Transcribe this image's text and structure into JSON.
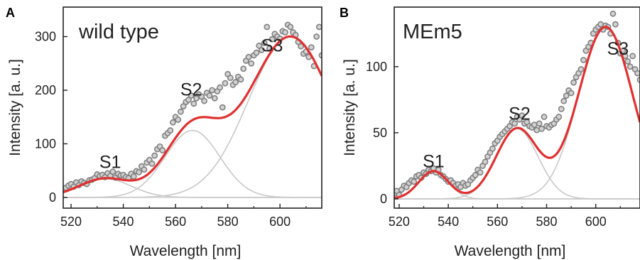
{
  "chart_data": [
    {
      "type": "scatter",
      "panel_label": "A",
      "title": "wild type",
      "xlabel": "Wavelength [nm]",
      "ylabel": "Intensity [a. u.]",
      "xlim": [
        517,
        616
      ],
      "ylim": [
        -20,
        355
      ],
      "xticks": [
        520,
        540,
        560,
        580,
        600
      ],
      "yticks": [
        0,
        100,
        200,
        300
      ],
      "grid": false,
      "colors": {
        "fit": "#e03030",
        "component": "#c8c8c8",
        "point_stroke": "#808080",
        "point_fill": "#d2d2d2"
      },
      "peaks": [
        {
          "label": "S1",
          "x": 535,
          "y": 55
        },
        {
          "label": "S2",
          "x": 566,
          "y": 190
        },
        {
          "label": "S3",
          "x": 597,
          "y": 272
        }
      ],
      "components": [
        {
          "center": 533,
          "amplitude": 35,
          "width": 10
        },
        {
          "center": 566.5,
          "amplitude": 125,
          "width": 10.5
        },
        {
          "center": 604,
          "amplitude": 300,
          "width": 16
        }
      ],
      "points": [
        [
          517,
          15
        ],
        [
          518,
          18
        ],
        [
          519,
          22
        ],
        [
          520,
          25
        ],
        [
          521,
          20
        ],
        [
          522,
          28
        ],
        [
          523,
          23
        ],
        [
          524,
          30
        ],
        [
          525,
          27
        ],
        [
          526,
          25
        ],
        [
          527,
          32
        ],
        [
          528,
          33
        ],
        [
          529,
          36
        ],
        [
          530,
          43
        ],
        [
          531,
          40
        ],
        [
          532,
          42
        ],
        [
          533,
          38
        ],
        [
          534,
          45
        ],
        [
          535,
          40
        ],
        [
          536,
          48
        ],
        [
          537,
          37
        ],
        [
          538,
          44
        ],
        [
          539,
          41
        ],
        [
          540,
          42
        ],
        [
          541,
          38
        ],
        [
          542,
          36
        ],
        [
          543,
          44
        ],
        [
          544,
          39
        ],
        [
          545,
          49
        ],
        [
          546,
          47
        ],
        [
          547,
          58
        ],
        [
          548,
          52
        ],
        [
          549,
          65
        ],
        [
          550,
          70
        ],
        [
          551,
          63
        ],
        [
          552,
          78
        ],
        [
          553,
          90
        ],
        [
          554,
          95
        ],
        [
          555,
          88
        ],
        [
          556,
          115
        ],
        [
          557,
          120
        ],
        [
          558,
          125
        ],
        [
          559,
          140
        ],
        [
          560,
          150
        ],
        [
          561,
          145
        ],
        [
          562,
          160
        ],
        [
          563,
          170
        ],
        [
          564,
          178
        ],
        [
          565,
          182
        ],
        [
          566,
          190
        ],
        [
          567,
          175
        ],
        [
          568,
          185
        ],
        [
          569,
          192
        ],
        [
          570,
          188
        ],
        [
          571,
          180
        ],
        [
          572,
          195
        ],
        [
          573,
          190
        ],
        [
          574,
          200
        ],
        [
          575,
          185
        ],
        [
          576,
          198
        ],
        [
          577,
          205
        ],
        [
          578,
          168
        ],
        [
          579,
          213
        ],
        [
          580,
          230
        ],
        [
          581,
          223
        ],
        [
          582,
          210
        ],
        [
          583,
          215
        ],
        [
          584,
          225
        ],
        [
          585,
          220
        ],
        [
          586,
          240
        ],
        [
          587,
          255
        ],
        [
          588,
          262
        ],
        [
          589,
          250
        ],
        [
          590,
          265
        ],
        [
          591,
          270
        ],
        [
          592,
          283
        ],
        [
          593,
          275
        ],
        [
          594,
          288
        ],
        [
          595,
          318
        ],
        [
          596,
          278
        ],
        [
          597,
          295
        ],
        [
          598,
          305
        ],
        [
          599,
          300
        ],
        [
          600,
          296
        ],
        [
          601,
          310
        ],
        [
          602,
          308
        ],
        [
          603,
          322
        ],
        [
          604,
          318
        ],
        [
          605,
          308
        ],
        [
          606,
          303
        ],
        [
          607,
          290
        ],
        [
          608,
          282
        ],
        [
          609,
          268
        ],
        [
          610,
          272
        ],
        [
          611,
          262
        ],
        [
          612,
          280
        ],
        [
          613,
          245
        ],
        [
          614,
          300
        ],
        [
          615,
          318
        ],
        [
          616,
          265
        ]
      ]
    },
    {
      "type": "scatter",
      "panel_label": "B",
      "title": "MEm5",
      "xlabel": "Wavelength [nm]",
      "ylabel": "Intensity [a. u.]",
      "xlim": [
        518,
        618
      ],
      "ylim": [
        -7,
        145
      ],
      "xticks": [
        520,
        540,
        560,
        580,
        600
      ],
      "yticks": [
        0,
        50,
        100
      ],
      "grid": false,
      "colors": {
        "fit": "#e03030",
        "component": "#c8c8c8",
        "point_stroke": "#808080",
        "point_fill": "#d2d2d2"
      },
      "peaks": [
        {
          "label": "S1",
          "x": 534,
          "y": 24
        },
        {
          "label": "S2",
          "x": 569,
          "y": 60
        },
        {
          "label": "S3",
          "x": 609,
          "y": 109
        }
      ],
      "components": [
        {
          "center": 534,
          "amplitude": 21,
          "width": 6
        },
        {
          "center": 568,
          "amplitude": 53,
          "width": 8.5
        },
        {
          "center": 604,
          "amplitude": 130,
          "width": 11
        }
      ],
      "points": [
        [
          518,
          4
        ],
        [
          519,
          6
        ],
        [
          520,
          3
        ],
        [
          521,
          7
        ],
        [
          522,
          10
        ],
        [
          523,
          9
        ],
        [
          524,
          12
        ],
        [
          525,
          14
        ],
        [
          526,
          13
        ],
        [
          527,
          17
        ],
        [
          528,
          18
        ],
        [
          529,
          16
        ],
        [
          530,
          20
        ],
        [
          531,
          19
        ],
        [
          532,
          22
        ],
        [
          533,
          21
        ],
        [
          534,
          23
        ],
        [
          535,
          20
        ],
        [
          536,
          22
        ],
        [
          537,
          18
        ],
        [
          538,
          17
        ],
        [
          539,
          15
        ],
        [
          540,
          13
        ],
        [
          541,
          14
        ],
        [
          542,
          12
        ],
        [
          543,
          10
        ],
        [
          544,
          11
        ],
        [
          545,
          9
        ],
        [
          546,
          12
        ],
        [
          547,
          10
        ],
        [
          548,
          11
        ],
        [
          549,
          14
        ],
        [
          550,
          16
        ],
        [
          551,
          18
        ],
        [
          552,
          22
        ],
        [
          553,
          20
        ],
        [
          554,
          25
        ],
        [
          555,
          28
        ],
        [
          556,
          32
        ],
        [
          557,
          35
        ],
        [
          558,
          38
        ],
        [
          559,
          42
        ],
        [
          560,
          44
        ],
        [
          561,
          47
        ],
        [
          562,
          49
        ],
        [
          563,
          51
        ],
        [
          564,
          53
        ],
        [
          565,
          55
        ],
        [
          566,
          58
        ],
        [
          567,
          57
        ],
        [
          568,
          62
        ],
        [
          569,
          60
        ],
        [
          570,
          63
        ],
        [
          571,
          57
        ],
        [
          572,
          58
        ],
        [
          573,
          55
        ],
        [
          574,
          54
        ],
        [
          575,
          56
        ],
        [
          576,
          52
        ],
        [
          577,
          57
        ],
        [
          578,
          53
        ],
        [
          579,
          62
        ],
        [
          580,
          55
        ],
        [
          581,
          54
        ],
        [
          582,
          56
        ],
        [
          583,
          57
        ],
        [
          584,
          60
        ],
        [
          585,
          62
        ],
        [
          586,
          68
        ],
        [
          587,
          74
        ],
        [
          588,
          78
        ],
        [
          589,
          82
        ],
        [
          590,
          80
        ],
        [
          591,
          88
        ],
        [
          592,
          92
        ],
        [
          593,
          95
        ],
        [
          594,
          98
        ],
        [
          595,
          105
        ],
        [
          596,
          112
        ],
        [
          597,
          115
        ],
        [
          598,
          118
        ],
        [
          599,
          125
        ],
        [
          600,
          128
        ],
        [
          601,
          130
        ],
        [
          602,
          132
        ],
        [
          603,
          128
        ],
        [
          604,
          131
        ],
        [
          605,
          130
        ],
        [
          606,
          125
        ],
        [
          607,
          140
        ],
        [
          608,
          132
        ],
        [
          609,
          118
        ],
        [
          610,
          110
        ],
        [
          611,
          112
        ],
        [
          612,
          108
        ],
        [
          613,
          104
        ],
        [
          614,
          100
        ],
        [
          615,
          108
        ],
        [
          616,
          98
        ],
        [
          617,
          95
        ],
        [
          618,
          90
        ]
      ]
    }
  ]
}
